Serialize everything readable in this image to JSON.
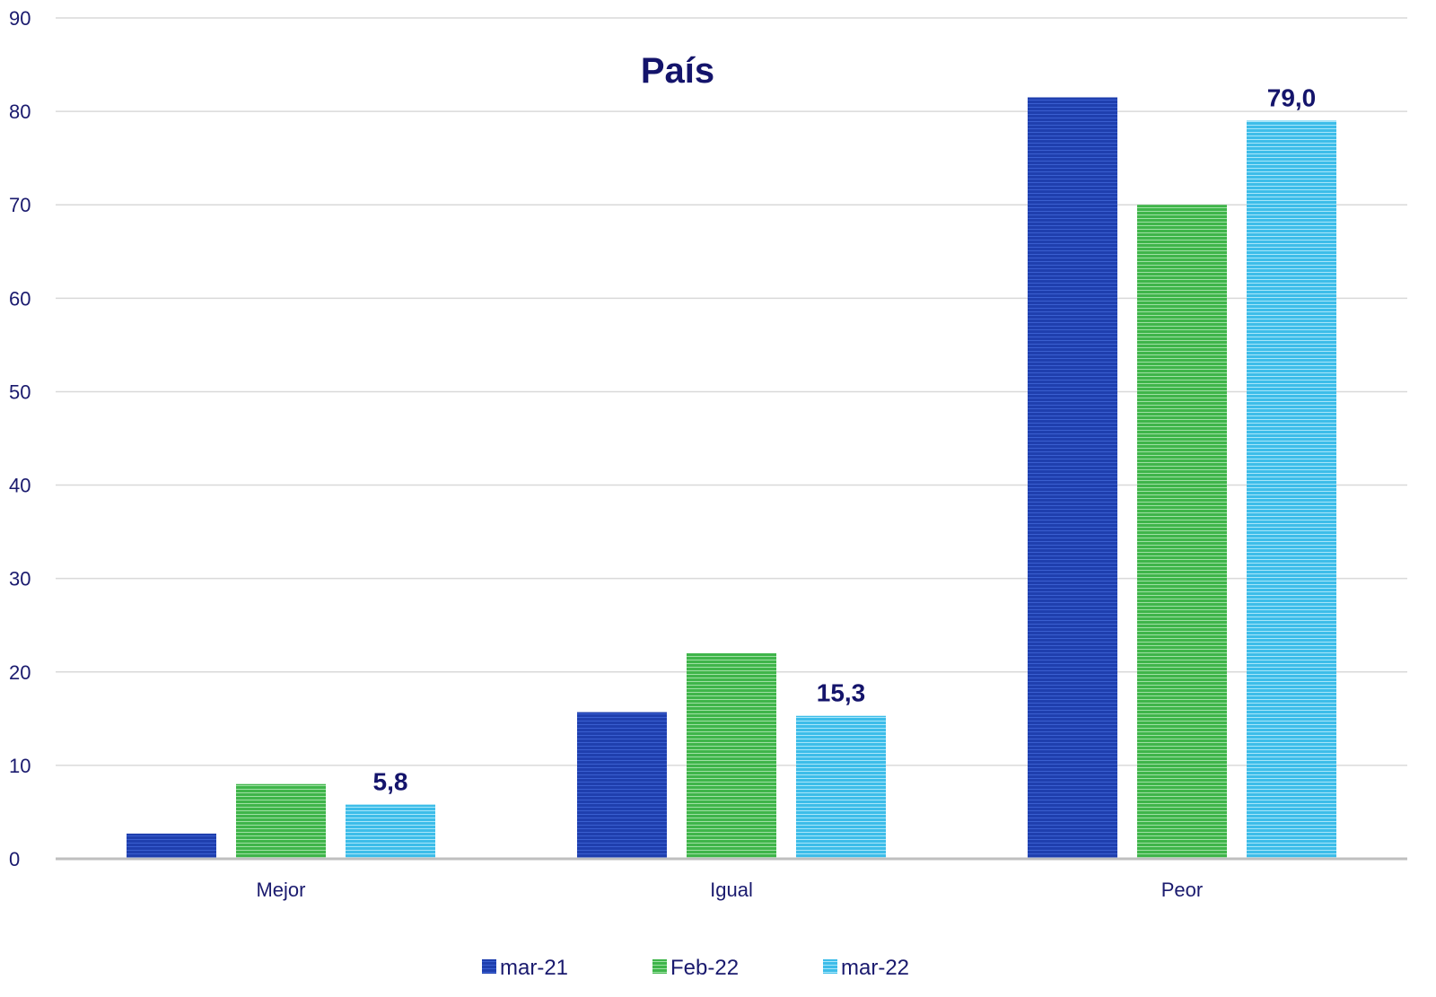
{
  "chart_data": {
    "type": "bar",
    "title": "País",
    "categories": [
      "Mejor",
      "Igual",
      "Peor"
    ],
    "series": [
      {
        "name": "mar-21",
        "values": [
          2.7,
          15.7,
          81.5
        ],
        "color": "#1f3fae"
      },
      {
        "name": "Feb-22",
        "values": [
          8.0,
          22.0,
          70.0
        ],
        "color": "#3fb54a"
      },
      {
        "name": "mar-22",
        "values": [
          5.8,
          15.3,
          79.0
        ],
        "color": "#3dbde9"
      }
    ],
    "data_labels": {
      "series": "mar-22",
      "texts": [
        "5,8",
        "15,3",
        "79,0"
      ]
    },
    "ylim": [
      0,
      90
    ],
    "yticks": [
      0,
      10,
      20,
      30,
      40,
      50,
      60,
      70,
      80,
      90
    ],
    "grid": true,
    "legend": "bottom",
    "xlabel": "",
    "ylabel": ""
  }
}
